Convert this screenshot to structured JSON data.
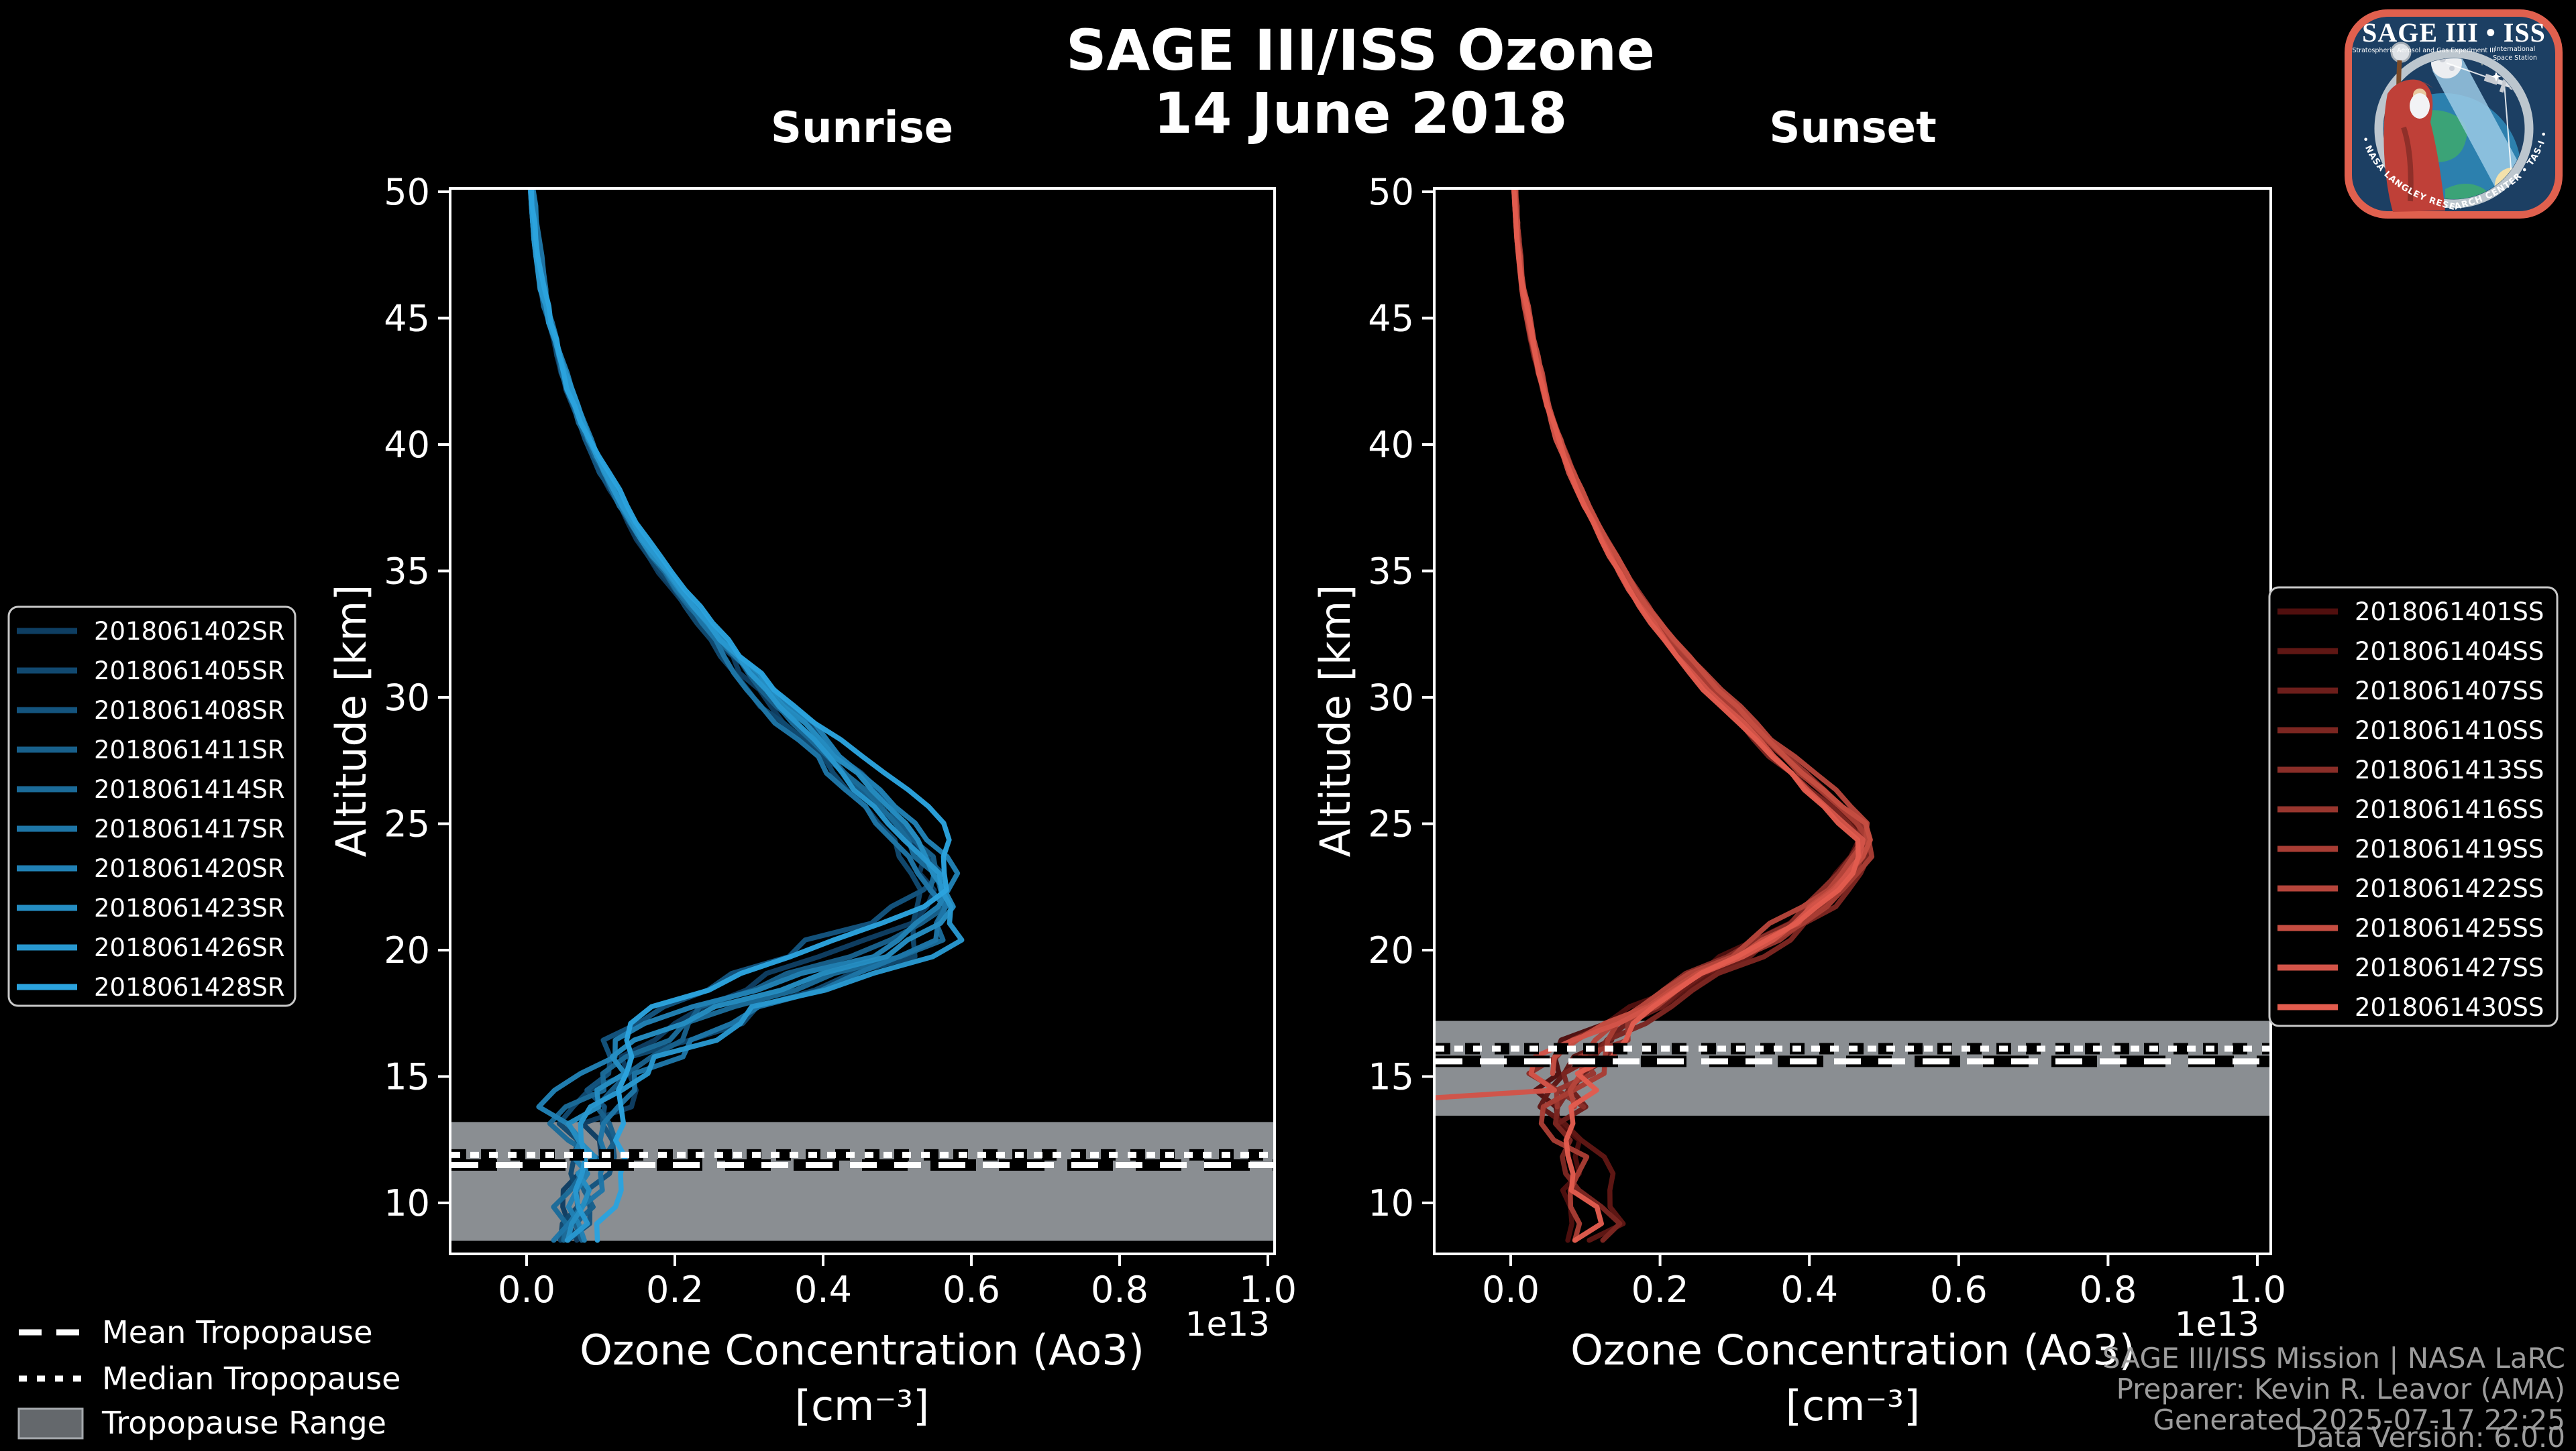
{
  "header": {
    "title": "SAGE III/ISS Ozone",
    "date": "14 June 2018"
  },
  "axes": {
    "xlabel_line1": "Ozone Concentration (Ao3)",
    "xlabel_line2": "[cm⁻³]",
    "ylabel": "Altitude [km]",
    "offset_label": "1e13",
    "xticks": [
      "0.0",
      "0.2",
      "0.4",
      "0.6",
      "0.8",
      "1.0"
    ],
    "xtick_values": [
      0.0,
      0.2,
      0.4,
      0.6,
      0.8,
      1.0
    ],
    "yticks": [
      "50",
      "45",
      "40",
      "35",
      "30",
      "25",
      "20",
      "15",
      "10"
    ],
    "ytick_values": [
      50,
      45,
      40,
      35,
      30,
      25,
      20,
      15,
      10
    ]
  },
  "tropopause_legend": {
    "mean": "Mean Tropopause",
    "median": "Median Tropopause",
    "range": "Tropopause Range"
  },
  "attribution": {
    "line1": "SAGE III/ISS Mission | NASA LaRC",
    "line2": "Preparer: Kevin R. Leavor (AMA)",
    "line3": "Generated 2025-07-17 22:25",
    "line4": "Data Version: 6.0.0"
  },
  "logo": {
    "title": "SAGE III • ISS",
    "subtitle_left": "Stratospheric Aerosol and Gas Experiment III",
    "subtitle_right_line1": "International",
    "subtitle_right_line2": "Space Station",
    "border_text": "BALL • NASA LANGLEY RESEARCH CENTER • TAS-I • ESA",
    "colors": {
      "border": "#e0604e",
      "field": "#1c3f63",
      "ring": "#bcc6ce"
    }
  },
  "colors": {
    "background": "#000000",
    "axis": "#ffffff",
    "tropopause_band": "#8a8e92",
    "tropopause_line": "#ffffff",
    "attribution_gray": "#9c9c9c",
    "sunrise_gradient": [
      "#0e3e62",
      "#2ba3de"
    ],
    "sunset_gradient": [
      "#500f0e",
      "#e25c4e"
    ]
  },
  "chart_data": [
    {
      "type": "line",
      "title": "Sunrise",
      "xlabel": "Ozone Concentration (Ao3) [cm⁻³] ×1e13",
      "ylabel": "Altitude [km]",
      "xlim": [
        -0.1,
        1.03
      ],
      "ylim": [
        7.9,
        50.1
      ],
      "grid": false,
      "legend_position": "outside-left",
      "series_names": [
        "2018061402SR",
        "2018061405SR",
        "2018061408SR",
        "2018061411SR",
        "2018061414SR",
        "2018061417SR",
        "2018061420SR",
        "2018061423SR",
        "2018061426SR",
        "2018061428SR"
      ],
      "base_profile": {
        "altitude_km": [
          50,
          48,
          46,
          44,
          42,
          40,
          38,
          36,
          34,
          32,
          30,
          28,
          26,
          25,
          24,
          23,
          22,
          21.5,
          21,
          20,
          19,
          18,
          17,
          16,
          15,
          14,
          13,
          12,
          11,
          10,
          9,
          8
        ],
        "concentration_1e13": [
          0.006,
          0.012,
          0.022,
          0.038,
          0.058,
          0.085,
          0.12,
          0.16,
          0.21,
          0.265,
          0.325,
          0.395,
          0.465,
          0.5,
          0.525,
          0.545,
          0.555,
          0.557,
          0.545,
          0.49,
          0.4,
          0.31,
          0.225,
          0.16,
          0.115,
          0.088,
          0.07,
          0.086,
          0.077,
          0.068,
          0.059,
          0.05
        ]
      },
      "peak": {
        "altitude_km": 22,
        "concentration_1e13": 0.56
      },
      "tropopause": {
        "mean_km": 11.5,
        "median_km": 11.9,
        "range_km": [
          8.5,
          13.2
        ]
      },
      "style": {
        "noise_amp": [
          [
            32,
            0.004
          ],
          [
            24,
            0.012
          ],
          [
            21,
            0.02
          ],
          [
            13,
            0.05
          ],
          [
            -99,
            0.032
          ]
        ],
        "amp_jitter": 0.05,
        "alt_shift": 1.3,
        "bottoms": [
          8,
          8,
          8,
          8,
          8,
          8,
          8,
          8,
          8,
          8
        ],
        "left_exit_index": null
      }
    },
    {
      "type": "line",
      "title": "Sunset",
      "xlabel": "Ozone Concentration (Ao3) [cm⁻³] ×1e13",
      "ylabel": "Altitude [km]",
      "xlim": [
        -0.1,
        1.03
      ],
      "ylim": [
        7.9,
        50.1
      ],
      "grid": false,
      "legend_position": "outside-right",
      "series_names": [
        "2018061401SS",
        "2018061404SS",
        "2018061407SS",
        "2018061410SS",
        "2018061413SS",
        "2018061416SS",
        "2018061419SS",
        "2018061422SS",
        "2018061425SS",
        "2018061427SS",
        "2018061430SS"
      ],
      "base_profile": {
        "altitude_km": [
          50,
          48,
          46,
          44,
          42,
          40,
          38,
          36,
          34,
          32,
          30,
          28,
          26,
          25,
          24.5,
          24,
          23,
          22,
          21,
          20,
          19,
          18,
          17,
          16,
          15,
          14,
          13,
          12,
          11,
          10,
          9,
          8
        ],
        "concentration_1e13": [
          0.005,
          0.01,
          0.018,
          0.03,
          0.046,
          0.068,
          0.095,
          0.13,
          0.17,
          0.22,
          0.28,
          0.35,
          0.425,
          0.462,
          0.478,
          0.474,
          0.452,
          0.42,
          0.372,
          0.312,
          0.252,
          0.192,
          0.132,
          0.095,
          0.075,
          0.07,
          0.08,
          0.092,
          0.085,
          0.095,
          0.11,
          0.09
        ]
      },
      "peak": {
        "altitude_km": 24.5,
        "concentration_1e13": 0.5
      },
      "tropopause": {
        "mean_km": 15.6,
        "median_km": 16.1,
        "range_km": [
          13.45,
          17.2
        ]
      },
      "style": {
        "noise_amp": [
          [
            30,
            0.003
          ],
          [
            22,
            0.007
          ],
          [
            17,
            0.022
          ],
          [
            13,
            0.05
          ],
          [
            -99,
            0.04
          ]
        ],
        "amp_jitter": 0.025,
        "alt_shift": 0.5,
        "bottoms": [
          8,
          8,
          12.9,
          8,
          13.2,
          13.8,
          8,
          13.4,
          15.0,
          14.2,
          8
        ],
        "left_exit_index": 9
      }
    }
  ]
}
